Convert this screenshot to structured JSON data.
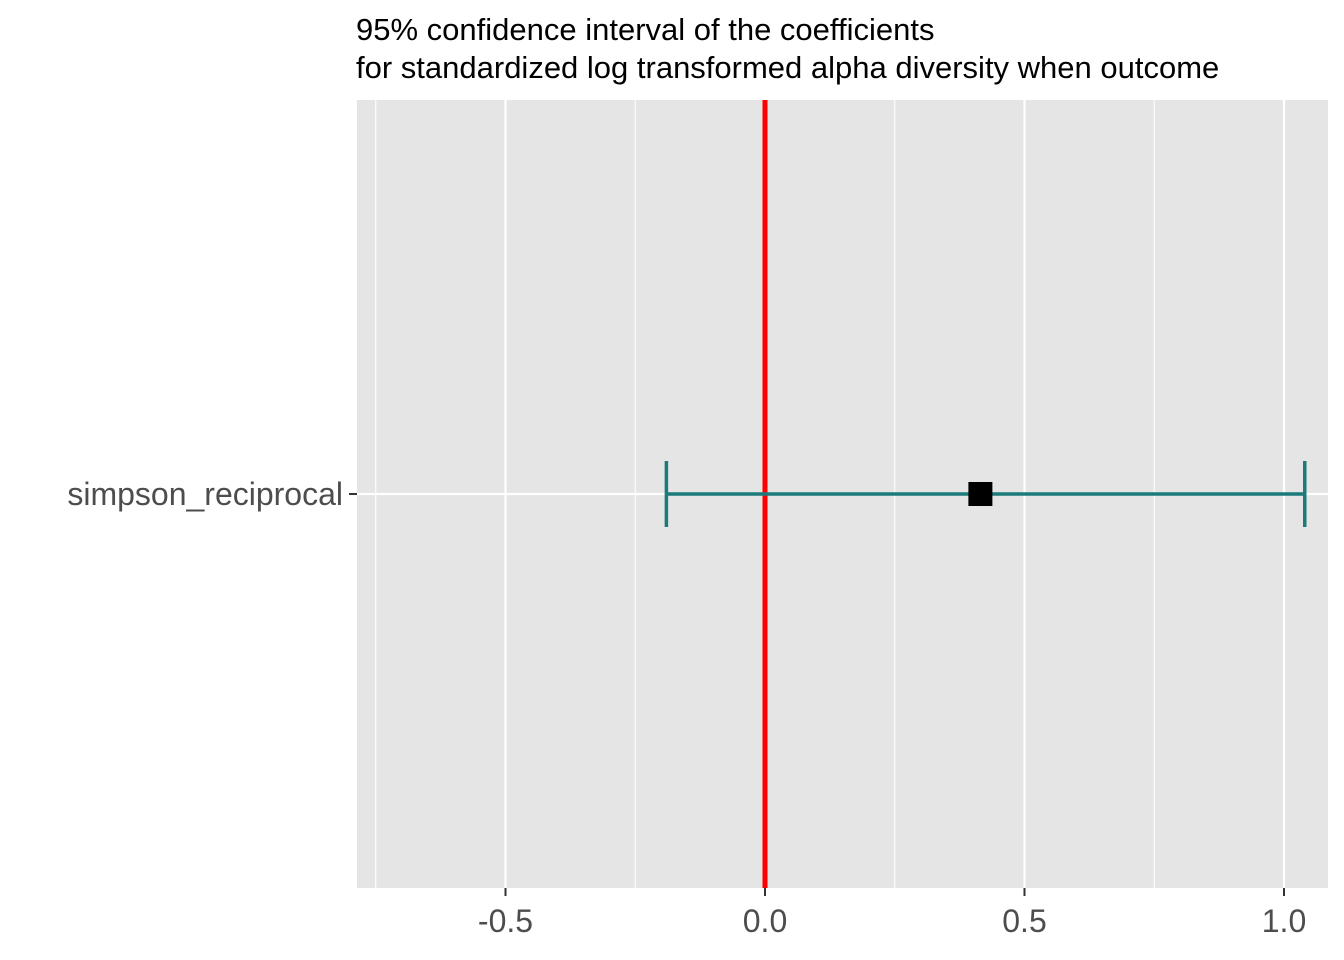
{
  "chart_data": {
    "type": "errorbar",
    "title": "95% confidence interval of the coefficients",
    "subtitle": "for standardized log transformed alpha diversity when outcome",
    "xlabel": "",
    "ylabel": "",
    "xlim": [
      -0.75,
      1.05
    ],
    "xticks": [
      -0.5,
      0.0,
      0.5,
      1.0
    ],
    "xtick_labels": [
      "-0.5",
      "0.0",
      "0.5",
      "1.0"
    ],
    "x_minor_gridlines": [
      -0.75,
      -0.25,
      0.25,
      0.75
    ],
    "categories": [
      "simpson_reciprocal"
    ],
    "points": [
      {
        "category": "simpson_reciprocal",
        "estimate": 0.415,
        "lower": -0.19,
        "upper": 1.04
      }
    ],
    "reference_line": {
      "x": 0,
      "color": "#ff0000"
    },
    "colors": {
      "panel_background": "#e5e5e5",
      "gridline": "#ffffff",
      "errorbar": "#1b7a7a",
      "point": "#000000",
      "reference_line": "#ff0000",
      "tick_text": "#4d4d4d"
    },
    "grid": true,
    "legend": "none"
  }
}
